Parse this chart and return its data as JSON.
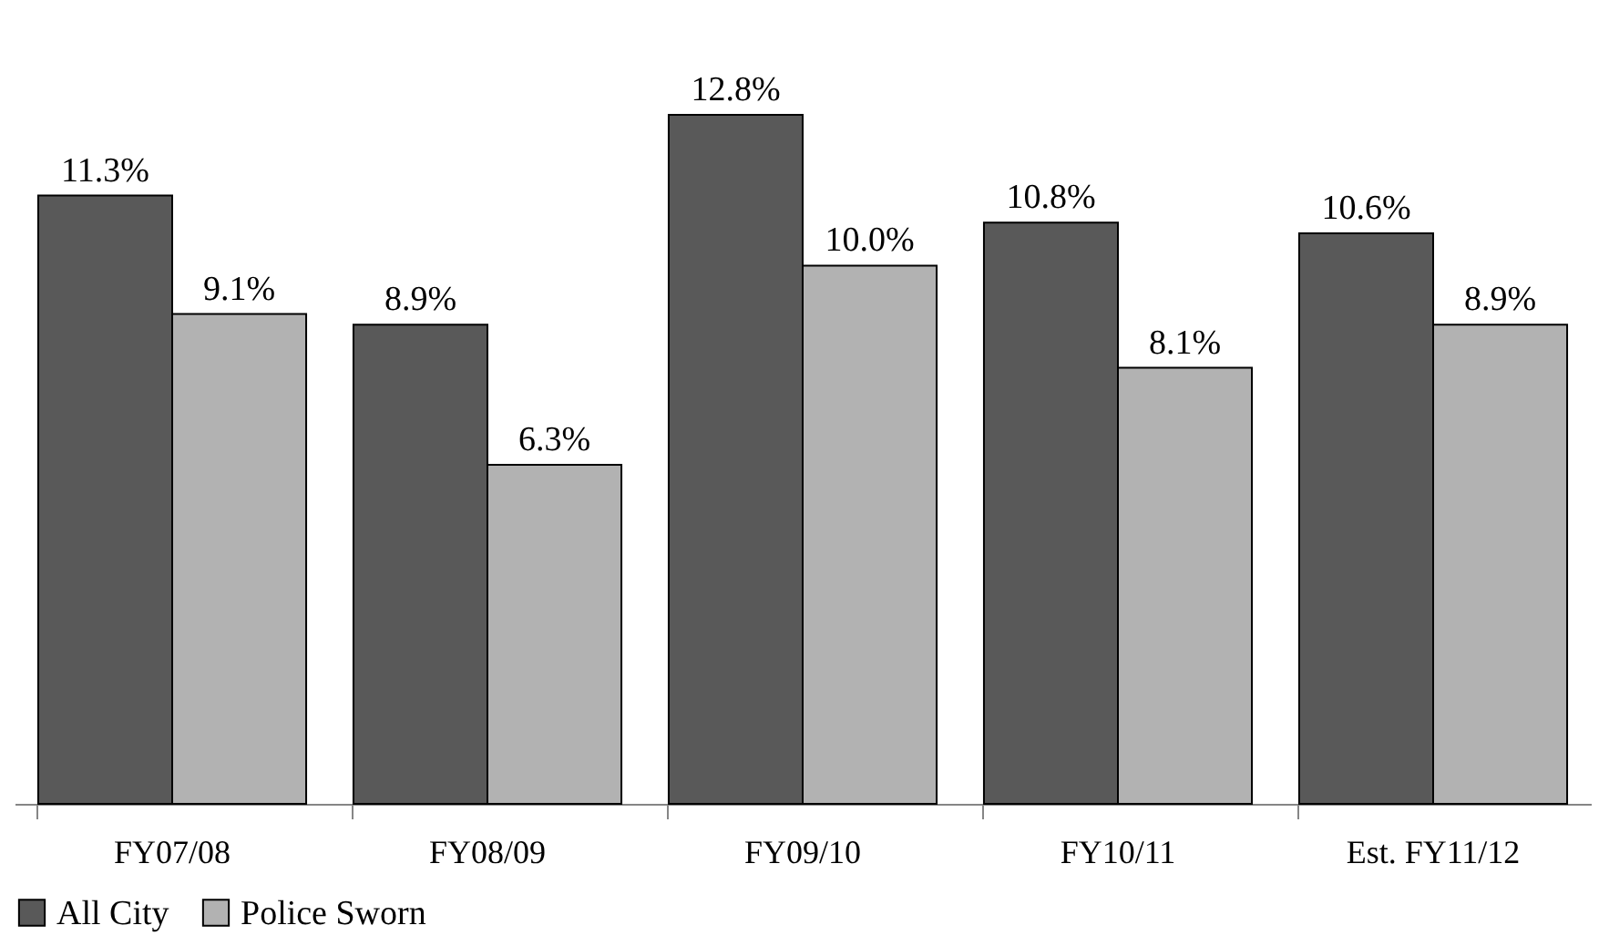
{
  "chart_data": {
    "type": "bar",
    "categories": [
      "FY07/08",
      "FY08/09",
      "FY09/10",
      "FY10/11",
      "Est. FY11/12"
    ],
    "series": [
      {
        "name": "All City",
        "color": "#595959",
        "values": [
          11.3,
          8.9,
          12.8,
          10.8,
          10.6
        ],
        "value_labels": [
          "11.3%",
          "8.9%",
          "12.8%",
          "10.8%",
          "10.6%"
        ]
      },
      {
        "name": "Police Sworn",
        "color": "#b2b2b2",
        "values": [
          9.1,
          6.3,
          10.0,
          8.1,
          8.9
        ],
        "value_labels": [
          "9.1%",
          "6.3%",
          "10.0%",
          "8.1%",
          "8.9%"
        ]
      }
    ],
    "legend": "bottom",
    "grid": false
  }
}
